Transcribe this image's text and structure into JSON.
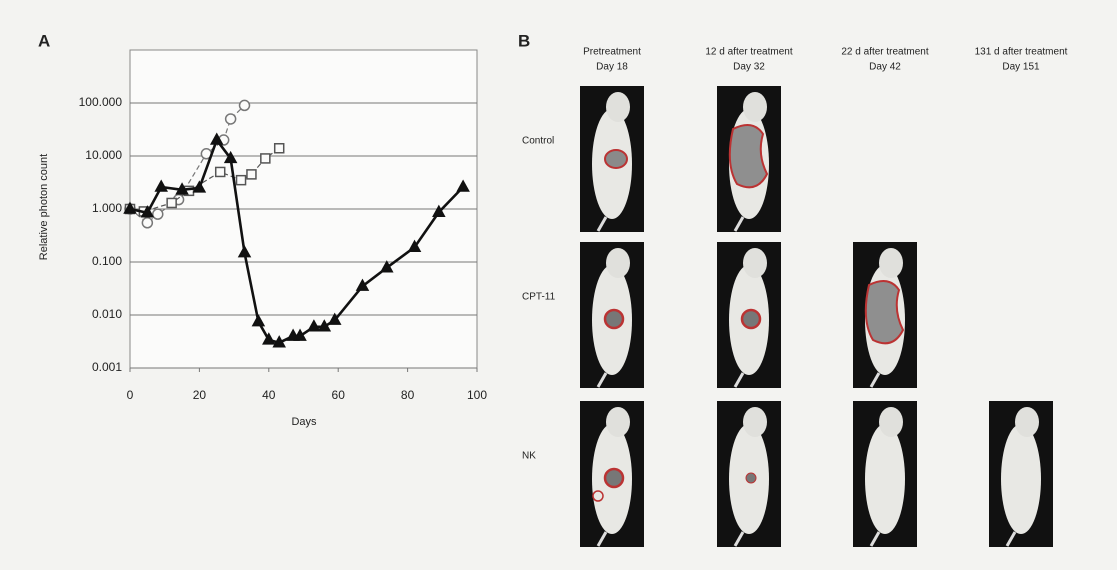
{
  "chart_data": {
    "type": "line",
    "panel": "A",
    "y_label": "Relative photon count",
    "x_label": "Days",
    "xlim": [
      0,
      100
    ],
    "xticks": [
      0,
      20,
      40,
      60,
      80,
      100
    ],
    "ylim": [
      0.001,
      1000
    ],
    "yscale": "log",
    "yticks": [
      {
        "value": 0.001,
        "label": "0.001"
      },
      {
        "value": 0.01,
        "label": "0.010"
      },
      {
        "value": 0.1,
        "label": "0.100"
      },
      {
        "value": 1,
        "label": "1.000"
      },
      {
        "value": 10,
        "label": "10.000"
      },
      {
        "value": 100,
        "label": "100.000"
      }
    ],
    "grid": true,
    "series": [
      {
        "color": "#777777",
        "marker": "circle",
        "dashed": true,
        "x": [
          0,
          5,
          8,
          14,
          22,
          27,
          29,
          33
        ],
        "values": [
          1,
          0.55,
          0.8,
          1.5,
          11,
          20,
          50,
          90
        ]
      },
      {
        "color": "#555555",
        "marker": "square",
        "dashed": true,
        "x": [
          0,
          4,
          12,
          17,
          26,
          32,
          35,
          39,
          43
        ],
        "values": [
          1,
          0.9,
          1.3,
          2.2,
          5,
          3.5,
          4.5,
          9,
          14
        ]
      },
      {
        "color": "#111111",
        "marker": "triangle",
        "dashed": false,
        "x": [
          0,
          5,
          9,
          15,
          20,
          25,
          29,
          33,
          37,
          40,
          43,
          47,
          49,
          53,
          56,
          59,
          67,
          74,
          82,
          89,
          96
        ],
        "values": [
          1,
          0.85,
          2.6,
          2.3,
          2.5,
          20,
          9,
          0.15,
          0.0075,
          0.0034,
          0.003,
          0.004,
          0.004,
          0.006,
          0.006,
          0.008,
          0.035,
          0.078,
          0.19,
          0.87,
          2.6
        ]
      }
    ]
  },
  "panel_b": {
    "panel": "B",
    "columns": [
      [
        "Pretreatment",
        "Day 18"
      ],
      [
        "12 d after treatment",
        "Day 32"
      ],
      [
        "22 d after treatment",
        "Day 42"
      ],
      [
        "131 d after treatment",
        "Day 151"
      ]
    ],
    "rows": [
      "Control",
      "CPT-11",
      "NK"
    ]
  }
}
